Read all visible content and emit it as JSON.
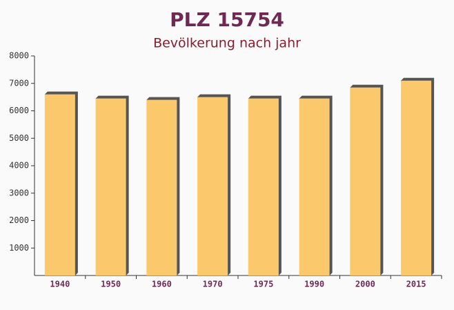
{
  "chart_data": {
    "type": "bar",
    "title": "PLZ 15754",
    "subtitle": "Bevölkerung nach jahr",
    "categories": [
      "1940",
      "1950",
      "1960",
      "1970",
      "1975",
      "1990",
      "2000",
      "2015"
    ],
    "values": [
      6600,
      6450,
      6400,
      6500,
      6450,
      6450,
      6850,
      7100
    ],
    "color": "#fbc86c",
    "ylim": [
      0,
      8000
    ],
    "yticks": [
      1000,
      2000,
      3000,
      4000,
      5000,
      6000,
      7000,
      8000
    ],
    "grid": false
  }
}
